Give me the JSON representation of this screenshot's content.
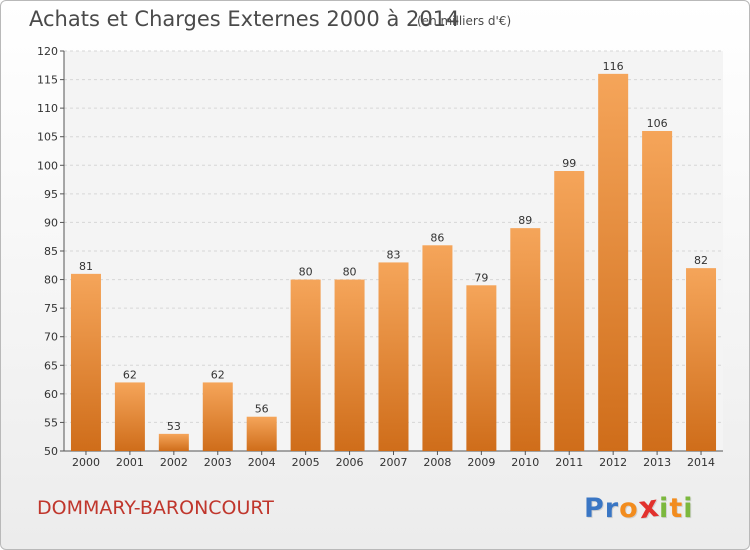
{
  "logo": {
    "letters": [
      "P",
      "r",
      "o",
      "x",
      "i",
      "t",
      "i"
    ],
    "colors": [
      "#3a76c4",
      "#3a76c4",
      "#f28c1e",
      "#e2312d",
      "#7cb83e",
      "#f28c1e",
      "#7cb83e"
    ]
  },
  "colors": {
    "bar_top": "#f5a55a",
    "bar_bottom": "#cf6d1a",
    "grid": "#d6d6d6",
    "axis": "#555555"
  },
  "chart_data": {
    "type": "bar",
    "title": "Achats et Charges Externes 2000 à 2014",
    "unit": "(en milliers d'€)",
    "location": "DOMMARY-BARONCOURT",
    "categories": [
      "2000",
      "2001",
      "2002",
      "2003",
      "2004",
      "2005",
      "2006",
      "2007",
      "2008",
      "2009",
      "2010",
      "2011",
      "2012",
      "2013",
      "2014"
    ],
    "values": [
      81,
      62,
      53,
      62,
      56,
      80,
      80,
      83,
      86,
      79,
      89,
      99,
      116,
      106,
      82
    ],
    "y_ticks": [
      "50",
      "55",
      "60",
      "65",
      "70",
      "75",
      "80",
      "85",
      "90",
      "95",
      "100",
      "105",
      "110",
      "115",
      "120"
    ],
    "ylim": [
      50,
      120
    ],
    "xlabel": "",
    "ylabel": "",
    "grid": true,
    "data_labels": true
  }
}
